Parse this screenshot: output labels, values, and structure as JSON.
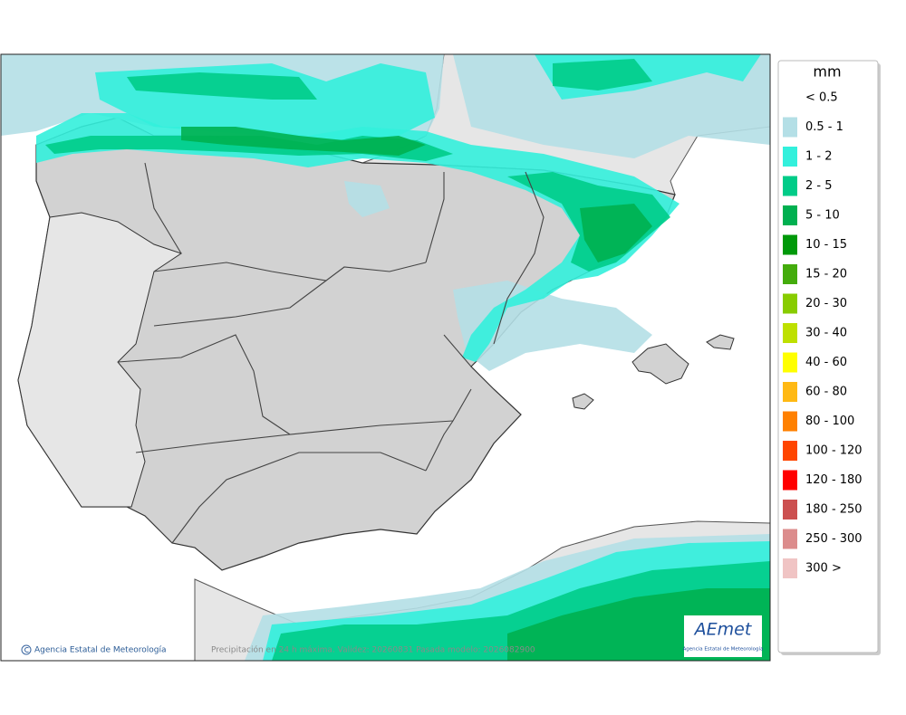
{
  "legend": {
    "title": "mm",
    "items": [
      {
        "label": "< 0.5",
        "color": "#ffffff"
      },
      {
        "label": "0.5 - 1",
        "color": "#b4dfe6"
      },
      {
        "label": "1 - 2",
        "color": "#33f0dc"
      },
      {
        "label": "2 - 5",
        "color": "#00cc88"
      },
      {
        "label": "5 - 10",
        "color": "#00b050"
      },
      {
        "label": "10 - 15",
        "color": "#00990a"
      },
      {
        "label": "15 - 20",
        "color": "#44ac0c"
      },
      {
        "label": "20 - 30",
        "color": "#88cc00"
      },
      {
        "label": "30 - 40",
        "color": "#bee000"
      },
      {
        "label": "40 - 60",
        "color": "#ffff00"
      },
      {
        "label": "60 - 80",
        "color": "#ffb914"
      },
      {
        "label": "80 - 100",
        "color": "#ff8000"
      },
      {
        "label": "100 - 120",
        "color": "#ff4500"
      },
      {
        "label": "120 - 180",
        "color": "#ff0000"
      },
      {
        "label": "180 - 250",
        "color": "#cc5050"
      },
      {
        "label": "250 - 300",
        "color": "#dc8c8c"
      },
      {
        "label": "300 >",
        "color": "#f0c4c4"
      }
    ]
  },
  "footer": {
    "credit": "Agencia Estatal de Meteorología",
    "caption": "Precipitación en 24 h máxima. Validez: 20260831 Pasada modelo: 2026082900"
  },
  "logo": {
    "name": "AEmet",
    "subtitle": "Agencia Estatal de Meteorología"
  }
}
